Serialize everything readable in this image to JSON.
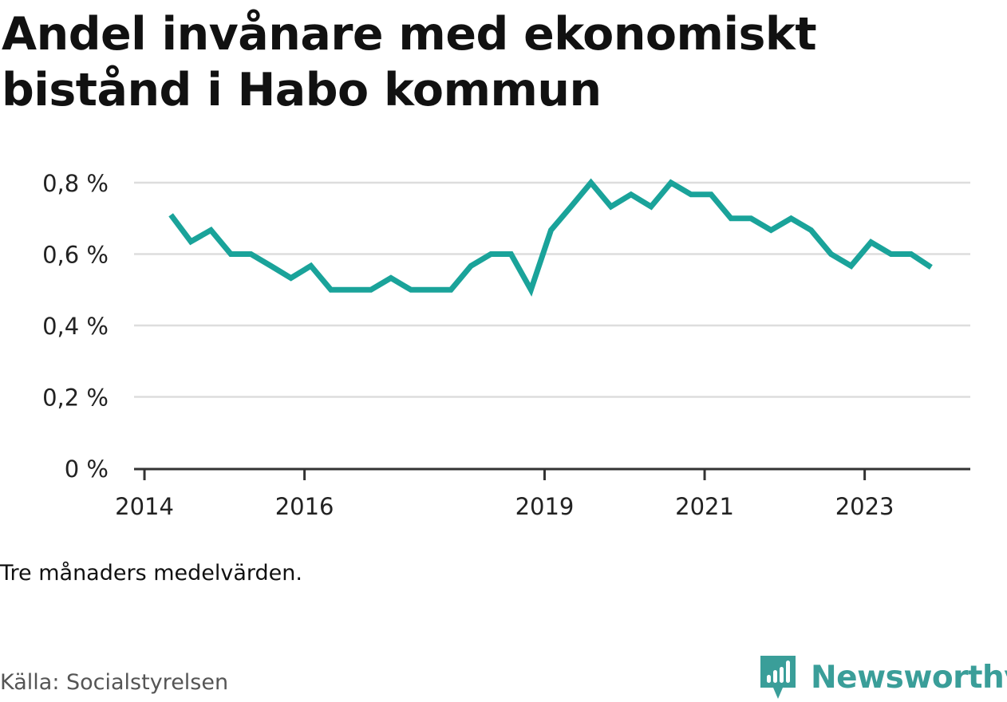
{
  "chart_data": {
    "type": "line",
    "title": "Andel invånare med ekonomiskt bistånd i Habo kommun",
    "xlabel": "",
    "ylabel": "",
    "ylim": [
      0,
      0.8
    ],
    "y_ticks": [
      {
        "value": 0,
        "label": "0 %"
      },
      {
        "value": 0.2,
        "label": "0,2 %"
      },
      {
        "value": 0.4,
        "label": "0,4 %"
      },
      {
        "value": 0.6,
        "label": "0,6 %"
      },
      {
        "value": 0.8,
        "label": "0,8 %"
      }
    ],
    "x_ticks": [
      {
        "value": 2014,
        "label": "2014"
      },
      {
        "value": 2016,
        "label": "2016"
      },
      {
        "value": 2019,
        "label": "2019"
      },
      {
        "value": 2021,
        "label": "2021"
      },
      {
        "value": 2023,
        "label": "2023"
      }
    ],
    "xlim": [
      2013.87,
      2024.32
    ],
    "series": [
      {
        "name": "Andel invånare med ekonomiskt bistånd",
        "color": "#1aa39a",
        "x": [
          2014.33,
          2014.58,
          2014.83,
          2015.08,
          2015.33,
          2015.58,
          2015.83,
          2016.08,
          2016.33,
          2016.58,
          2016.83,
          2017.08,
          2017.33,
          2017.58,
          2017.83,
          2018.08,
          2018.33,
          2018.58,
          2018.83,
          2019.08,
          2019.33,
          2019.58,
          2019.83,
          2020.08,
          2020.33,
          2020.58,
          2020.83,
          2021.08,
          2021.33,
          2021.58,
          2021.83,
          2022.08,
          2022.33,
          2022.58,
          2022.83,
          2023.08,
          2023.33,
          2023.58,
          2023.83
        ],
        "values": [
          0.71,
          0.635,
          0.667,
          0.6,
          0.6,
          0.567,
          0.533,
          0.567,
          0.5,
          0.5,
          0.5,
          0.533,
          0.5,
          0.5,
          0.5,
          0.567,
          0.6,
          0.6,
          0.5,
          0.667,
          0.733,
          0.8,
          0.733,
          0.767,
          0.733,
          0.8,
          0.767,
          0.767,
          0.7,
          0.7,
          0.667,
          0.7,
          0.667,
          0.6,
          0.567,
          0.633,
          0.6,
          0.6,
          0.563
        ]
      }
    ],
    "grid": true,
    "legend": "none"
  },
  "header": {
    "title": "Andel invånare med ekonomiskt bistånd i Habo kommun"
  },
  "footer": {
    "note": "Tre månaders medelvärden.",
    "source": "Källa: Socialstyrelsen",
    "brand": "Newsworthy"
  },
  "colors": {
    "line": "#1aa39a",
    "grid": "#dddddd",
    "axis": "#333333",
    "brand": "#3a9e99"
  }
}
